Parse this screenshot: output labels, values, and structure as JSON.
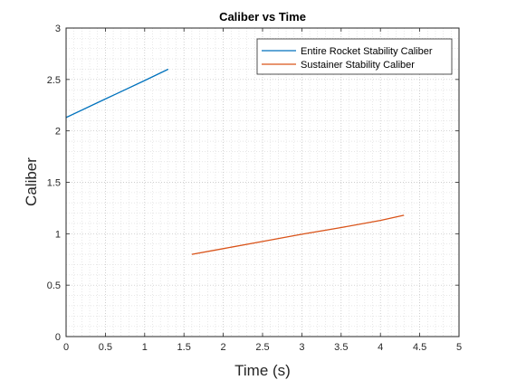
{
  "chart_data": {
    "type": "line",
    "title": "Caliber vs Time",
    "xlabel": "Time (s)",
    "ylabel": "Caliber",
    "xlim": [
      0,
      5
    ],
    "ylim": [
      0,
      3
    ],
    "xticks": [
      "0",
      "0.5",
      "1",
      "1.5",
      "2",
      "2.5",
      "3",
      "3.5",
      "4",
      "4.5",
      "5"
    ],
    "yticks": [
      "0",
      "0.5",
      "1",
      "1.5",
      "2",
      "2.5",
      "3"
    ],
    "grid": "on (major and minor, dotted)",
    "legend_position": "top-right",
    "series": [
      {
        "name": "Entire Rocket Stability Caliber",
        "color": "#0072BD",
        "x": [
          0,
          0.5,
          1.0,
          1.3
        ],
        "y": [
          2.13,
          2.31,
          2.49,
          2.6
        ]
      },
      {
        "name": "Sustainer Stability Caliber",
        "color": "#D95319",
        "x": [
          1.6,
          2.0,
          2.5,
          3.0,
          3.5,
          4.0,
          4.3
        ],
        "y": [
          0.8,
          0.855,
          0.925,
          0.995,
          1.06,
          1.13,
          1.18
        ]
      }
    ]
  }
}
